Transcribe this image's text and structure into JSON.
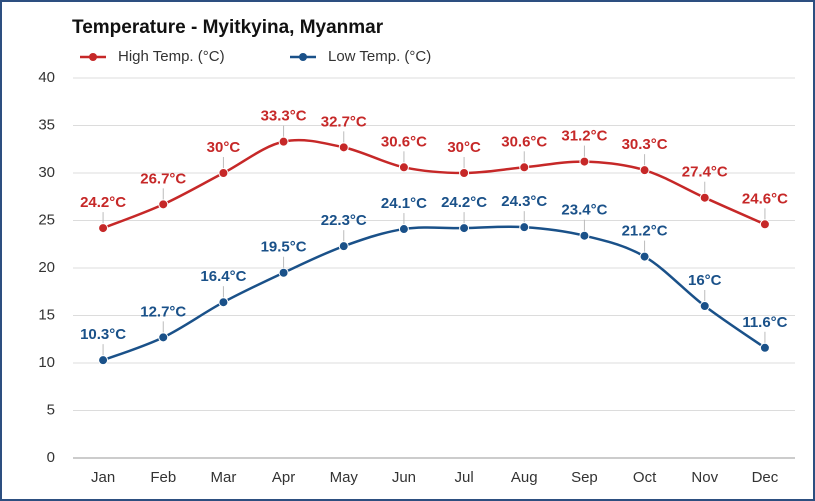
{
  "chart_data": {
    "type": "line",
    "title": "Temperature - Myitkyina, Myanmar",
    "categories": [
      "Jan",
      "Feb",
      "Mar",
      "Apr",
      "May",
      "Jun",
      "Jul",
      "Aug",
      "Sep",
      "Oct",
      "Nov",
      "Dec"
    ],
    "series": [
      {
        "name": "High Temp. (°C)",
        "color": "#c62828",
        "values": [
          24.2,
          26.7,
          30,
          33.3,
          32.7,
          30.6,
          30,
          30.6,
          31.2,
          30.3,
          27.4,
          24.6
        ],
        "value_labels": [
          "24.2°C",
          "26.7°C",
          "30°C",
          "33.3°C",
          "32.7°C",
          "30.6°C",
          "30°C",
          "30.6°C",
          "31.2°C",
          "30.3°C",
          "27.4°C",
          "24.6°C"
        ]
      },
      {
        "name": "Low Temp. (°C)",
        "color": "#1a5189",
        "values": [
          10.3,
          12.7,
          16.4,
          19.5,
          22.3,
          24.1,
          24.2,
          24.3,
          23.4,
          21.2,
          16,
          11.6
        ],
        "value_labels": [
          "10.3°C",
          "12.7°C",
          "16.4°C",
          "19.5°C",
          "22.3°C",
          "24.1°C",
          "24.2°C",
          "24.3°C",
          "23.4°C",
          "21.2°C",
          "16°C",
          "11.6°C"
        ]
      }
    ],
    "ylim": [
      0,
      40
    ],
    "yticks": [
      0,
      5,
      10,
      15,
      20,
      25,
      30,
      35,
      40
    ],
    "grid": true,
    "smooth": true
  }
}
